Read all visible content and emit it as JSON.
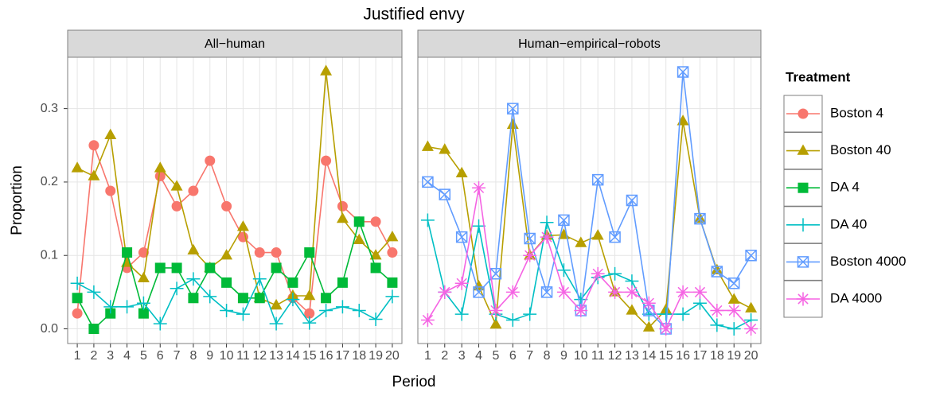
{
  "chart_data": {
    "type": "line",
    "title": "Justified envy",
    "x_label": "Period",
    "y_label": "Proportion",
    "facets": [
      "All−human",
      "Human−empirical−robots"
    ],
    "x": [
      1,
      2,
      3,
      4,
      5,
      6,
      7,
      8,
      9,
      10,
      11,
      12,
      13,
      14,
      15,
      16,
      17,
      18,
      19,
      20
    ],
    "xlim": [
      0.42,
      20.58
    ],
    "xticks": [
      1,
      2,
      3,
      4,
      5,
      6,
      7,
      8,
      9,
      10,
      11,
      12,
      13,
      14,
      15,
      16,
      17,
      18,
      19,
      20
    ],
    "ylim": [
      -0.02,
      0.37
    ],
    "yticks": [
      {
        "value": 0,
        "label": "0.0"
      },
      0.1,
      0.2,
      0.3
    ],
    "grid": true,
    "legend_title": "Treatment",
    "series": [
      {
        "name": "Boston 4",
        "color": "#F8766D",
        "shape": "circle",
        "values": [
          [
            0.021,
            0.25,
            0.188,
            0.083,
            0.104,
            0.208,
            0.167,
            0.188,
            0.229,
            0.167,
            0.125,
            0.104,
            0.104,
            0.042,
            0.021,
            0.229,
            0.167,
            0.146,
            0.146,
            0.104
          ],
          null
        ]
      },
      {
        "name": "Boston 40",
        "color": "#B79F00",
        "shape": "triangle",
        "values": [
          [
            0.219,
            0.208,
            0.264,
            0.09,
            0.069,
            0.219,
            0.194,
            0.107,
            0.083,
            0.1,
            0.139,
            0.042,
            0.032,
            0.045,
            0.045,
            0.351,
            0.15,
            0.121,
            0.1,
            0.125
          ],
          [
            0.248,
            0.244,
            0.212,
            0.058,
            0.006,
            0.278,
            0.1,
            0.127,
            0.128,
            0.117,
            0.127,
            0.05,
            0.025,
            0.002,
            0.026,
            0.283,
            0.15,
            0.08,
            0.04,
            0.028
          ]
        ]
      },
      {
        "name": "DA 4",
        "color": "#00BA38",
        "shape": "square",
        "values": [
          [
            0.042,
            0,
            0.021,
            0.104,
            0.021,
            0.083,
            0.083,
            0.042,
            0.083,
            0.063,
            0.042,
            0.042,
            0.083,
            0.063,
            0.104,
            0.042,
            0.063,
            0.146,
            0.083,
            0.063
          ],
          null
        ]
      },
      {
        "name": "DA 40",
        "color": "#00BFC4",
        "shape": "plus",
        "values": [
          [
            0.062,
            0.05,
            0.03,
            0.03,
            0.035,
            0.007,
            0.055,
            0.068,
            0.044,
            0.025,
            0.02,
            0.068,
            0.007,
            0.04,
            0.008,
            0.025,
            0.03,
            0.025,
            0.013,
            0.044
          ],
          [
            0.148,
            0.05,
            0.02,
            0.14,
            0.02,
            0.012,
            0.02,
            0.145,
            0.08,
            0.04,
            0.07,
            0.075,
            0.065,
            0.02,
            0.02,
            0.02,
            0.035,
            0.005,
            0,
            0.012
          ]
        ]
      },
      {
        "name": "Boston 4000",
        "color": "#619CFF",
        "shape": "square-x",
        "values": [
          null,
          [
            0.2,
            0.183,
            0.125,
            0.05,
            0.075,
            0.3,
            0.123,
            0.05,
            0.148,
            0.025,
            0.203,
            0.125,
            0.175,
            0.025,
            0,
            0.35,
            0.15,
            0.078,
            0.062,
            0.1
          ]
        ]
      },
      {
        "name": "DA 4000",
        "color": "#F564E3",
        "shape": "asterisk",
        "values": [
          null,
          [
            0.012,
            0.05,
            0.062,
            0.192,
            0.025,
            0.05,
            0.1,
            0.125,
            0.05,
            0.025,
            0.075,
            0.05,
            0.05,
            0.035,
            0,
            0.05,
            0.05,
            0.025,
            0.025,
            0
          ]
        ]
      }
    ]
  }
}
